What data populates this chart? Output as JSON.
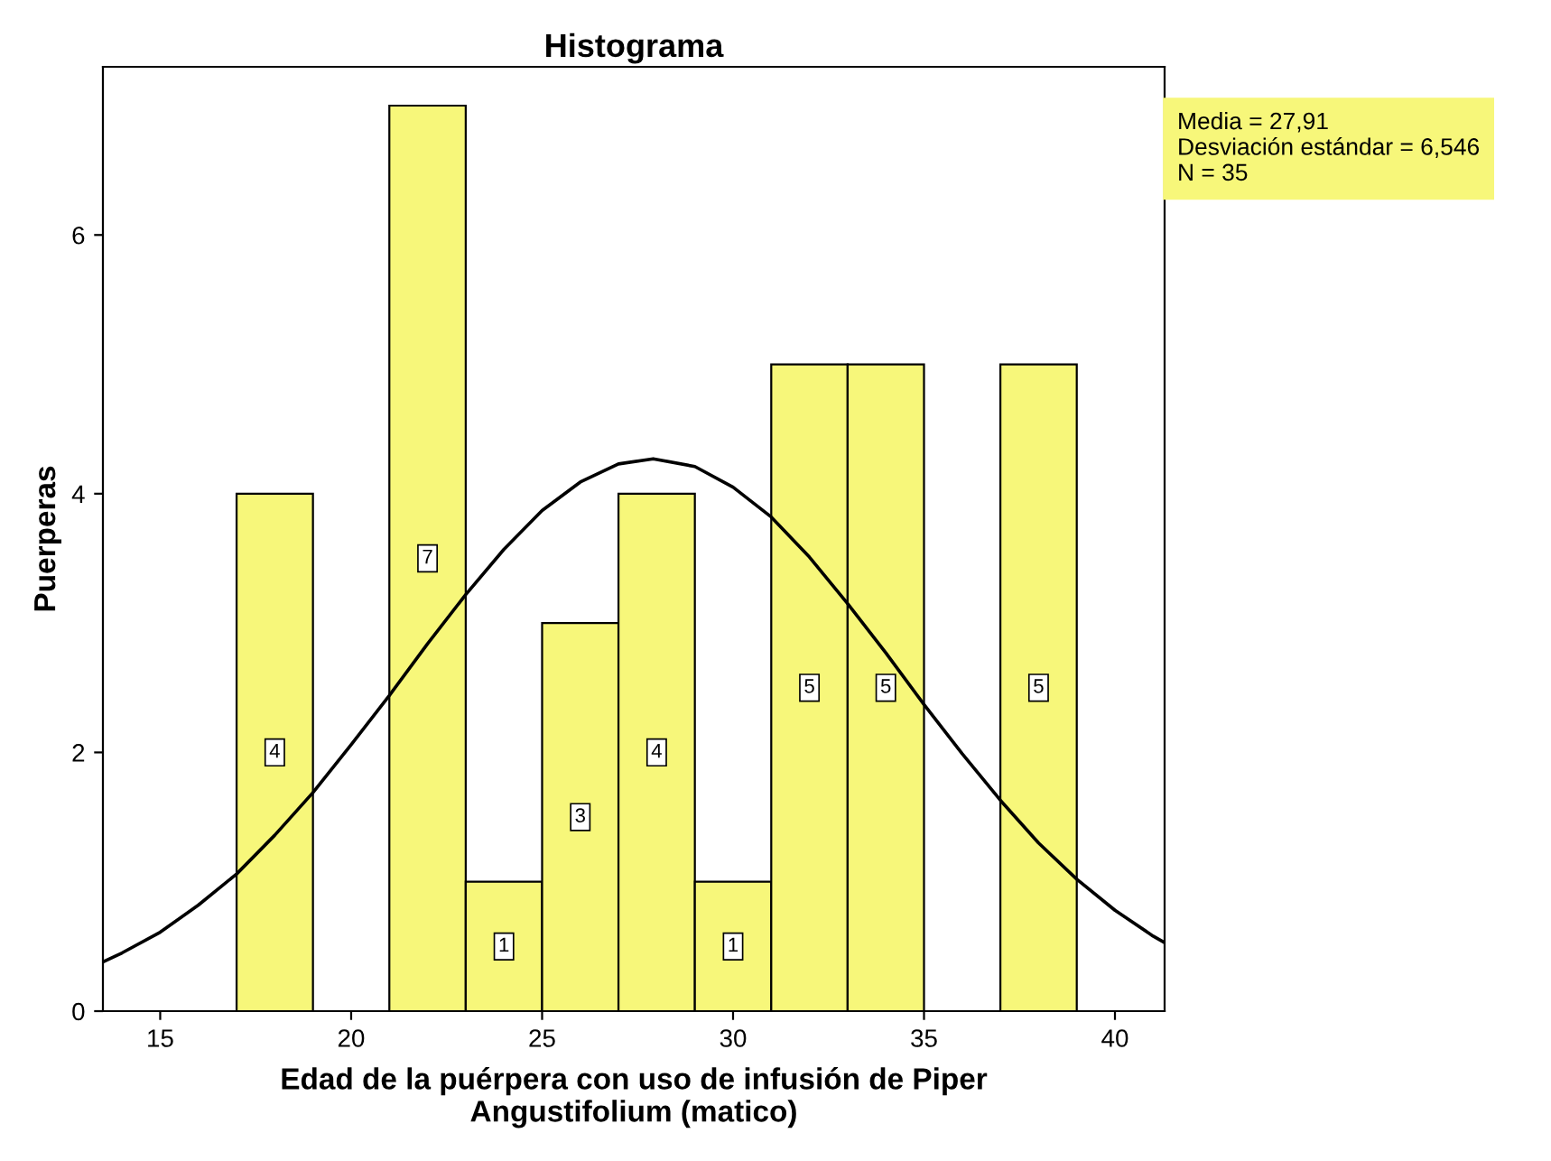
{
  "chart_data": {
    "type": "histogram",
    "title": "Histograma",
    "xlabel": "Edad de la puérpera con uso de infusión de Piper\nAngustifolium (matico)",
    "ylabel": "Puerperas",
    "bins": [
      17,
      19,
      21,
      23,
      25,
      27,
      29,
      31,
      33,
      35,
      37,
      39
    ],
    "values": [
      4,
      0,
      7,
      1,
      3,
      4,
      1,
      5,
      5,
      0,
      5
    ],
    "value_labels": [
      "4",
      null,
      "7",
      "1",
      "3",
      "4",
      "1",
      "5",
      "5",
      null,
      "5"
    ],
    "color": "#f7f77a",
    "series": [
      {
        "type": "line",
        "color": "#000000",
        "x": [
          13.5,
          14,
          15,
          16,
          17,
          18,
          19,
          20,
          21,
          22,
          23,
          24,
          25,
          26,
          27,
          27.91,
          29,
          30,
          31,
          32,
          33,
          34,
          35,
          36,
          37,
          38,
          39,
          40,
          41,
          41.3
        ],
        "values": [
          0.38,
          0.45,
          0.61,
          0.82,
          1.06,
          1.36,
          1.69,
          2.06,
          2.44,
          2.84,
          3.22,
          3.57,
          3.87,
          4.09,
          4.23,
          4.27,
          4.21,
          4.05,
          3.82,
          3.51,
          3.15,
          2.77,
          2.37,
          1.99,
          1.63,
          1.3,
          1.02,
          0.78,
          0.58,
          0.53
        ]
      }
    ],
    "annotations": [
      "Media = 27,91\nDesviación estándar = 6,546\nN = 35"
    ],
    "xlim": [
      13.5,
      41.3
    ],
    "ylim": [
      0,
      7.3
    ],
    "xticks": [
      15,
      20,
      25,
      30,
      35,
      40
    ],
    "yticks": [
      0,
      2,
      4,
      6
    ],
    "grid": false,
    "legend": false
  }
}
